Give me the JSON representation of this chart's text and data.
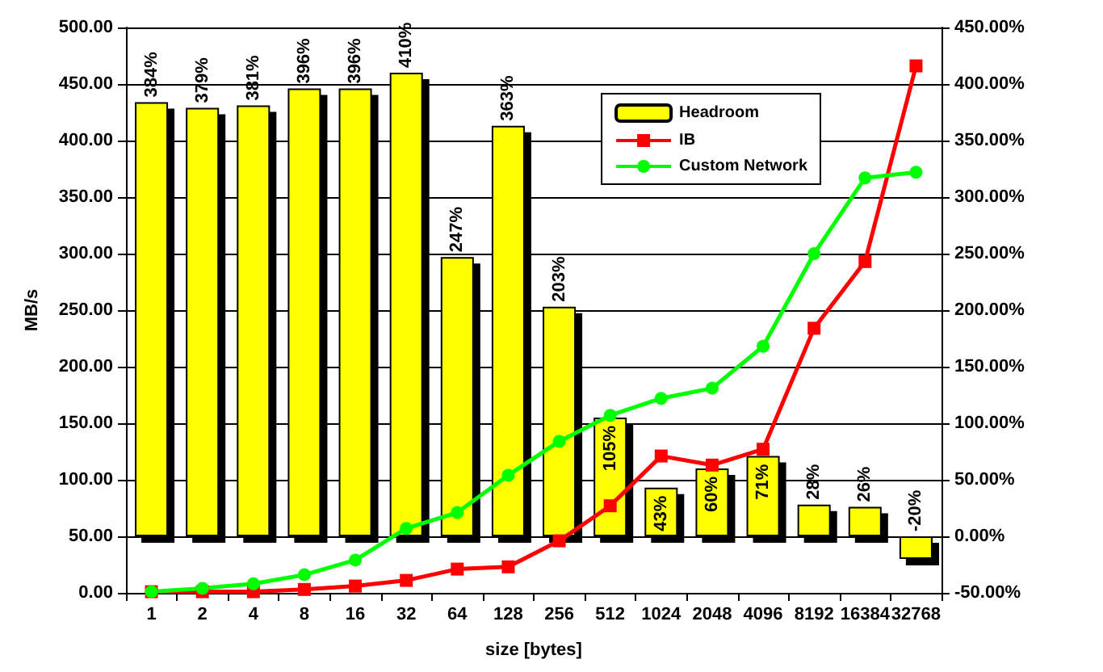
{
  "chart_data": {
    "type": "bar",
    "xlabel": "size [bytes]",
    "ylabel": "MB/s",
    "categories": [
      "1",
      "2",
      "4",
      "8",
      "16",
      "32",
      "64",
      "128",
      "256",
      "512",
      "1024",
      "2048",
      "4096",
      "8192",
      "16384",
      "32768"
    ],
    "series": [
      {
        "name": "Headroom",
        "type": "bar",
        "axis": "y2",
        "color": "#ffff00",
        "values": [
          384,
          379,
          381,
          396,
          396,
          410,
          247,
          363,
          203,
          105,
          43,
          60,
          71,
          28,
          26,
          -20
        ],
        "value_labels": [
          "384%",
          "379%",
          "381%",
          "396%",
          "396%",
          "410%",
          "247%",
          "363%",
          "203%",
          "105%",
          "43%",
          "60%",
          "71%",
          "28%",
          "26%",
          "-20%"
        ]
      },
      {
        "name": "IB",
        "type": "line",
        "color": "#ff0000",
        "marker": "square",
        "values": [
          1,
          1,
          1,
          3,
          6,
          11,
          21,
          23,
          46,
          77,
          121,
          113,
          127,
          234,
          293,
          466
        ]
      },
      {
        "name": "Custom Network",
        "type": "line",
        "color": "#00ff00",
        "marker": "circle",
        "values": [
          1,
          4,
          8,
          16,
          29,
          57,
          71,
          104,
          134,
          157,
          172,
          181,
          218,
          300,
          367,
          372
        ]
      }
    ],
    "ylim": [
      0,
      500
    ],
    "yticks": [
      {
        "value": 0,
        "label": "0.00"
      },
      {
        "value": 50,
        "label": "50.00"
      },
      {
        "value": 100,
        "label": "100.00"
      },
      {
        "value": 150,
        "label": "150.00"
      },
      {
        "value": 200,
        "label": "200.00"
      },
      {
        "value": 250,
        "label": "250.00"
      },
      {
        "value": 300,
        "label": "300.00"
      },
      {
        "value": 350,
        "label": "350.00"
      },
      {
        "value": 400,
        "label": "400.00"
      },
      {
        "value": 450,
        "label": "450.00"
      },
      {
        "value": 500,
        "label": "500.00"
      }
    ],
    "y2lim": [
      -50,
      450
    ],
    "y2ticks": [
      {
        "value": -50,
        "label": "-50.00%"
      },
      {
        "value": 0,
        "label": "0.00%"
      },
      {
        "value": 50,
        "label": "50.00%"
      },
      {
        "value": 100,
        "label": "100.00%"
      },
      {
        "value": 150,
        "label": "150.00%"
      },
      {
        "value": 200,
        "label": "200.00%"
      },
      {
        "value": 250,
        "label": "250.00%"
      },
      {
        "value": 300,
        "label": "300.00%"
      },
      {
        "value": 350,
        "label": "350.00%"
      },
      {
        "value": 400,
        "label": "400.00%"
      },
      {
        "value": 450,
        "label": "450.00%"
      }
    ],
    "grid": "y",
    "legend": "top right"
  }
}
